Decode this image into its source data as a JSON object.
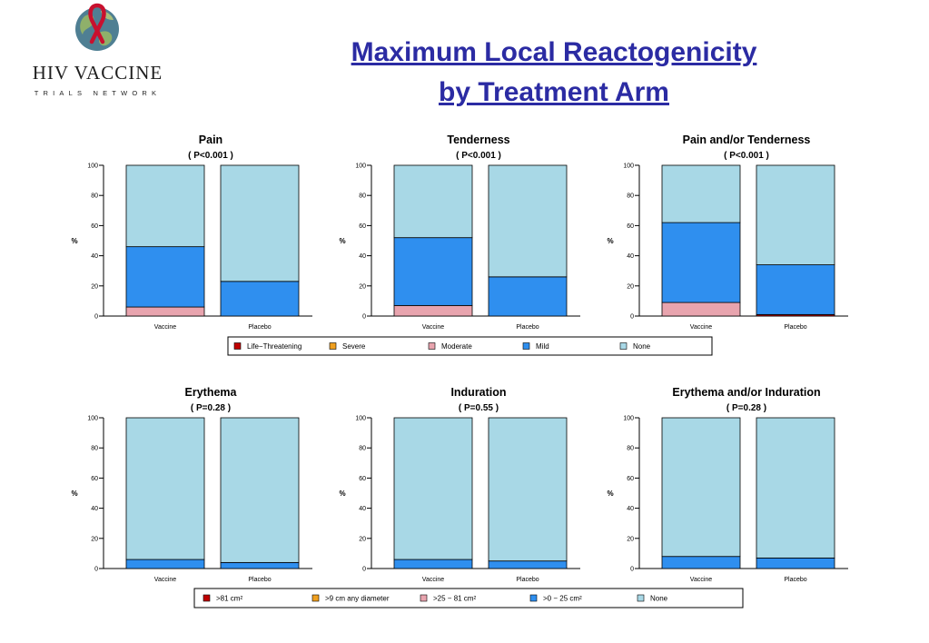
{
  "header": {
    "logo_title": "HIV VACCINE",
    "logo_subtitle": "TRIALS NETWORK",
    "title_line1": "Maximum Local Reactogenicity",
    "title_line2": "by Treatment Arm"
  },
  "colors": {
    "life_threatening": "#c00000",
    "severe": "#f0a020",
    "moderate": "#e8a4ae",
    "mild": "#2f8fef",
    "none": "#a8d8e6",
    "title": "#2b2ba3"
  },
  "legends": {
    "reactogenicity": [
      "Life−Threatening",
      "Severe",
      "Moderate",
      "Mild",
      "None"
    ],
    "erythema": [
      ">81 cm²",
      ">9 cm any diameter",
      ">25 − 81 cm²",
      ">0 − 25 cm²",
      "None"
    ]
  },
  "chart_data": [
    {
      "type": "bar",
      "stacked": true,
      "title": "Pain",
      "subtitle": "( P<0.001 )",
      "ylabel": "%",
      "categories": [
        "Vaccine",
        "Placebo"
      ],
      "ylim": [
        0,
        100
      ],
      "yticks": [
        0,
        20,
        40,
        60,
        80,
        100
      ],
      "series": [
        {
          "name": "Life−Threatening",
          "values": [
            0,
            0
          ]
        },
        {
          "name": "Severe",
          "values": [
            0,
            0
          ]
        },
        {
          "name": "Moderate",
          "values": [
            6,
            0
          ]
        },
        {
          "name": "Mild",
          "values": [
            40,
            23
          ]
        },
        {
          "name": "None",
          "values": [
            54,
            77
          ]
        }
      ]
    },
    {
      "type": "bar",
      "stacked": true,
      "title": "Tenderness",
      "subtitle": "( P<0.001 )",
      "ylabel": "%",
      "categories": [
        "Vaccine",
        "Placebo"
      ],
      "ylim": [
        0,
        100
      ],
      "yticks": [
        0,
        20,
        40,
        60,
        80,
        100
      ],
      "series": [
        {
          "name": "Life−Threatening",
          "values": [
            0,
            0
          ]
        },
        {
          "name": "Severe",
          "values": [
            0,
            0
          ]
        },
        {
          "name": "Moderate",
          "values": [
            7,
            0
          ]
        },
        {
          "name": "Mild",
          "values": [
            45,
            26
          ]
        },
        {
          "name": "None",
          "values": [
            48,
            74
          ]
        }
      ]
    },
    {
      "type": "bar",
      "stacked": true,
      "title": "Pain and/or Tenderness",
      "subtitle": "( P<0.001 )",
      "ylabel": "%",
      "categories": [
        "Vaccine",
        "Placebo"
      ],
      "ylim": [
        0,
        100
      ],
      "yticks": [
        0,
        20,
        40,
        60,
        80,
        100
      ],
      "series": [
        {
          "name": "Life−Threatening",
          "values": [
            0,
            1
          ]
        },
        {
          "name": "Severe",
          "values": [
            0,
            0
          ]
        },
        {
          "name": "Moderate",
          "values": [
            9,
            0
          ]
        },
        {
          "name": "Mild",
          "values": [
            53,
            33
          ]
        },
        {
          "name": "None",
          "values": [
            38,
            66
          ]
        }
      ]
    },
    {
      "type": "bar",
      "stacked": true,
      "title": "Erythema",
      "subtitle": "( P=0.28 )",
      "ylabel": "%",
      "categories": [
        "Vaccine",
        "Placebo"
      ],
      "ylim": [
        0,
        100
      ],
      "yticks": [
        0,
        20,
        40,
        60,
        80,
        100
      ],
      "series": [
        {
          "name": ">81 cm²",
          "values": [
            0,
            0
          ]
        },
        {
          "name": ">9 cm any diameter",
          "values": [
            0,
            0
          ]
        },
        {
          "name": ">25 − 81 cm²",
          "values": [
            0,
            0
          ]
        },
        {
          "name": ">0 − 25 cm²",
          "values": [
            6,
            4
          ]
        },
        {
          "name": "None",
          "values": [
            94,
            96
          ]
        }
      ]
    },
    {
      "type": "bar",
      "stacked": true,
      "title": "Induration",
      "subtitle": "( P=0.55 )",
      "ylabel": "%",
      "categories": [
        "Vaccine",
        "Placebo"
      ],
      "ylim": [
        0,
        100
      ],
      "yticks": [
        0,
        20,
        40,
        60,
        80,
        100
      ],
      "series": [
        {
          "name": ">81 cm²",
          "values": [
            0,
            0
          ]
        },
        {
          "name": ">9 cm any diameter",
          "values": [
            0,
            0
          ]
        },
        {
          "name": ">25 − 81 cm²",
          "values": [
            0,
            0
          ]
        },
        {
          "name": ">0 − 25 cm²",
          "values": [
            6,
            5
          ]
        },
        {
          "name": "None",
          "values": [
            94,
            95
          ]
        }
      ]
    },
    {
      "type": "bar",
      "stacked": true,
      "title": "Erythema and/or Induration",
      "subtitle": "( P=0.28 )",
      "ylabel": "%",
      "categories": [
        "Vaccine",
        "Placebo"
      ],
      "ylim": [
        0,
        100
      ],
      "yticks": [
        0,
        20,
        40,
        60,
        80,
        100
      ],
      "series": [
        {
          "name": ">81 cm²",
          "values": [
            0,
            0
          ]
        },
        {
          "name": ">9 cm any diameter",
          "values": [
            0,
            0
          ]
        },
        {
          "name": ">25 − 81 cm²",
          "values": [
            0,
            0
          ]
        },
        {
          "name": ">0 − 25 cm²",
          "values": [
            8,
            7
          ]
        },
        {
          "name": "None",
          "values": [
            92,
            93
          ]
        }
      ]
    }
  ]
}
